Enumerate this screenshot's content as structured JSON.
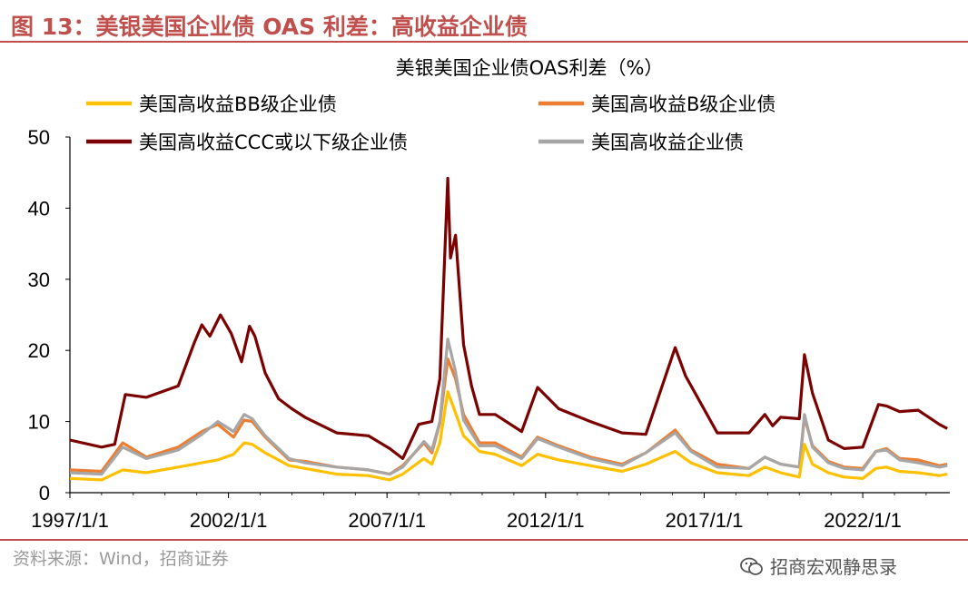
{
  "figure": {
    "title": "图 13：美银美国企业债 OAS 利差：高收益企业债",
    "source": "资料来源：Wind，招商证券",
    "watermark": "招商宏观静思录"
  },
  "colors": {
    "accent": "#c0504d",
    "bb": "#ffc000",
    "b": "#ed7d31",
    "ccc": "#7b0000",
    "hy": "#a6a6a6"
  },
  "chart_data": {
    "type": "line",
    "title": "美银美国企业债OAS利差（%）",
    "ylim": [
      0,
      50
    ],
    "yticks": [
      0,
      10,
      20,
      30,
      40,
      50
    ],
    "xlim": [
      "1997-01-01",
      "2024-09-30"
    ],
    "xticks": [
      "1997/1/1",
      "2002/1/1",
      "2007/1/1",
      "2012/1/1",
      "2017/1/1",
      "2022/1/1"
    ],
    "legend": "top",
    "series": [
      {
        "name": "美国高收益BB级企业债",
        "color": "#ffc000",
        "x": [
          "1997-01",
          "1998-01",
          "1998-09",
          "1999-06",
          "2000-06",
          "2001-03",
          "2001-09",
          "2002-03",
          "2002-07",
          "2002-10",
          "2003-03",
          "2003-12",
          "2004-06",
          "2005-06",
          "2006-06",
          "2007-02",
          "2007-07",
          "2008-03",
          "2008-06",
          "2008-09",
          "2008-12",
          "2009-03",
          "2009-06",
          "2009-12",
          "2010-06",
          "2011-04",
          "2011-10",
          "2012-06",
          "2013-06",
          "2014-06",
          "2015-03",
          "2016-02",
          "2016-08",
          "2017-06",
          "2018-06",
          "2018-12",
          "2019-06",
          "2020-01",
          "2020-03",
          "2020-06",
          "2020-12",
          "2021-06",
          "2022-01",
          "2022-06",
          "2022-10",
          "2023-03",
          "2023-10",
          "2024-06",
          "2024-09"
        ],
        "values": [
          2.0,
          1.8,
          3.2,
          2.8,
          3.6,
          4.2,
          4.6,
          5.4,
          7.0,
          6.8,
          5.6,
          3.8,
          3.4,
          2.6,
          2.4,
          1.8,
          2.6,
          4.8,
          4.0,
          7.0,
          14.2,
          11.2,
          8.0,
          5.8,
          5.4,
          3.8,
          5.4,
          4.6,
          3.8,
          3.0,
          4.0,
          5.8,
          4.2,
          2.8,
          2.4,
          3.6,
          2.8,
          2.2,
          6.8,
          4.0,
          2.8,
          2.2,
          2.0,
          3.4,
          3.6,
          3.0,
          2.8,
          2.4,
          2.6
        ]
      },
      {
        "name": "美国高收益B级企业债",
        "color": "#ed7d31",
        "x": [
          "1997-01",
          "1998-01",
          "1998-09",
          "1999-06",
          "2000-06",
          "2001-03",
          "2001-09",
          "2002-03",
          "2002-07",
          "2002-10",
          "2003-03",
          "2003-12",
          "2004-06",
          "2005-06",
          "2006-06",
          "2007-02",
          "2007-07",
          "2008-03",
          "2008-06",
          "2008-09",
          "2008-12",
          "2009-03",
          "2009-06",
          "2009-12",
          "2010-06",
          "2011-04",
          "2011-10",
          "2012-06",
          "2013-06",
          "2014-06",
          "2015-03",
          "2016-02",
          "2016-08",
          "2017-06",
          "2018-06",
          "2018-12",
          "2019-06",
          "2020-01",
          "2020-03",
          "2020-06",
          "2020-12",
          "2021-06",
          "2022-01",
          "2022-06",
          "2022-10",
          "2023-03",
          "2023-10",
          "2024-06",
          "2024-09"
        ],
        "values": [
          3.2,
          3.0,
          7.0,
          5.0,
          6.4,
          8.6,
          9.6,
          7.8,
          10.2,
          10.0,
          7.8,
          4.6,
          4.4,
          3.6,
          3.2,
          2.6,
          3.8,
          7.0,
          5.6,
          9.8,
          18.8,
          16.0,
          11.0,
          7.0,
          7.0,
          5.0,
          7.8,
          6.6,
          5.0,
          4.0,
          5.6,
          8.8,
          6.0,
          4.0,
          3.4,
          5.0,
          4.0,
          3.6,
          10.6,
          6.6,
          4.4,
          3.6,
          3.4,
          5.8,
          6.2,
          4.8,
          4.6,
          3.8,
          4.0
        ]
      },
      {
        "name": "美国高收益CCC或以下级企业债",
        "color": "#7b0000",
        "x": [
          "1997-01",
          "1998-01",
          "1998-06",
          "1998-10",
          "1999-06",
          "2000-06",
          "2000-12",
          "2001-03",
          "2001-06",
          "2001-10",
          "2002-02",
          "2002-06",
          "2002-09",
          "2002-11",
          "2003-03",
          "2003-08",
          "2004-01",
          "2004-06",
          "2005-06",
          "2006-06",
          "2007-02",
          "2007-07",
          "2008-01",
          "2008-06",
          "2008-09",
          "2008-12",
          "2009-01",
          "2009-03",
          "2009-06",
          "2009-09",
          "2009-12",
          "2010-06",
          "2011-04",
          "2011-10",
          "2012-06",
          "2013-06",
          "2014-06",
          "2015-03",
          "2016-02",
          "2016-06",
          "2017-06",
          "2018-06",
          "2018-12",
          "2019-03",
          "2019-06",
          "2020-01",
          "2020-03",
          "2020-06",
          "2020-12",
          "2021-06",
          "2022-01",
          "2022-07",
          "2022-10",
          "2023-03",
          "2023-10",
          "2024-06",
          "2024-09"
        ],
        "values": [
          7.4,
          6.4,
          6.8,
          13.8,
          13.4,
          15.0,
          21.0,
          23.6,
          22.0,
          25.0,
          22.4,
          18.4,
          23.4,
          22.0,
          16.8,
          13.2,
          11.8,
          10.6,
          8.4,
          8.0,
          6.2,
          4.8,
          9.6,
          10.0,
          16.0,
          44.2,
          33.0,
          36.2,
          20.8,
          15.0,
          11.0,
          11.0,
          8.6,
          14.8,
          11.8,
          10.0,
          8.4,
          8.2,
          20.4,
          16.4,
          8.4,
          8.4,
          11.0,
          9.4,
          10.6,
          10.4,
          19.4,
          14.0,
          7.4,
          6.2,
          6.4,
          12.4,
          12.2,
          11.4,
          11.6,
          9.6,
          9.0
        ]
      },
      {
        "name": "美国高收益企业债",
        "color": "#a6a6a6",
        "x": [
          "1997-01",
          "1998-01",
          "1998-09",
          "1999-06",
          "2000-06",
          "2001-03",
          "2001-09",
          "2002-03",
          "2002-07",
          "2002-10",
          "2003-03",
          "2003-12",
          "2004-06",
          "2005-06",
          "2006-06",
          "2007-02",
          "2007-07",
          "2008-03",
          "2008-06",
          "2008-09",
          "2008-12",
          "2009-03",
          "2009-06",
          "2009-12",
          "2010-06",
          "2011-04",
          "2011-10",
          "2012-06",
          "2013-06",
          "2014-06",
          "2015-03",
          "2016-02",
          "2016-08",
          "2017-06",
          "2018-06",
          "2018-12",
          "2019-06",
          "2020-01",
          "2020-03",
          "2020-06",
          "2020-12",
          "2021-06",
          "2022-01",
          "2022-06",
          "2022-10",
          "2023-03",
          "2023-10",
          "2024-06",
          "2024-09"
        ],
        "values": [
          2.8,
          2.6,
          6.4,
          4.8,
          6.0,
          8.2,
          10.0,
          8.6,
          11.0,
          10.4,
          8.0,
          4.8,
          4.2,
          3.6,
          3.2,
          2.6,
          3.6,
          7.2,
          6.0,
          10.0,
          21.6,
          17.0,
          10.2,
          6.6,
          6.6,
          4.8,
          7.6,
          6.4,
          4.8,
          3.8,
          5.6,
          8.4,
          5.8,
          3.6,
          3.4,
          5.0,
          4.0,
          3.6,
          11.0,
          6.4,
          4.2,
          3.4,
          3.2,
          5.8,
          6.0,
          4.6,
          4.2,
          3.6,
          3.8
        ]
      }
    ]
  }
}
